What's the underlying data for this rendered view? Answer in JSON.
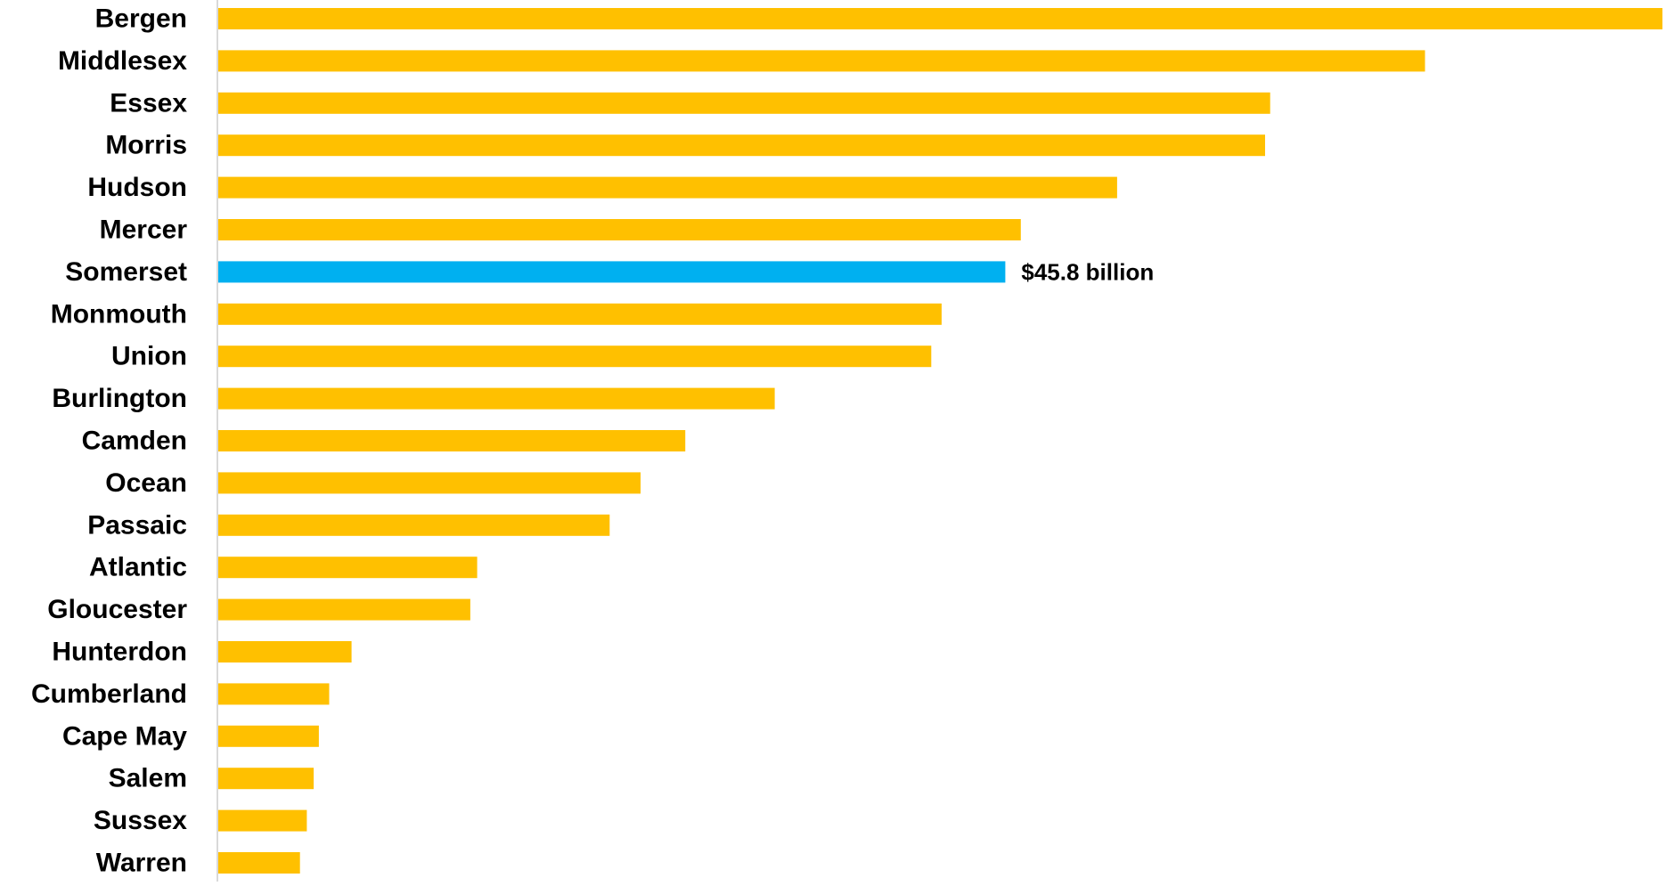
{
  "chart_data": {
    "type": "bar",
    "orientation": "horizontal",
    "categories": [
      "Bergen",
      "Middlesex",
      "Essex",
      "Morris",
      "Hudson",
      "Mercer",
      "Somerset",
      "Monmouth",
      "Union",
      "Burlington",
      "Camden",
      "Ocean",
      "Passaic",
      "Atlantic",
      "Gloucester",
      "Hunterdon",
      "Cumberland",
      "Cape May",
      "Salem",
      "Sussex",
      "Warren"
    ],
    "values": [
      84.0,
      70.2,
      61.2,
      60.9,
      52.3,
      46.7,
      45.8,
      42.1,
      41.5,
      32.4,
      27.2,
      24.6,
      22.8,
      15.1,
      14.7,
      7.8,
      6.5,
      5.9,
      5.6,
      5.2,
      4.8
    ],
    "highlight_category": "Somerset",
    "annotations": [
      {
        "category": "Somerset",
        "text": "$45.8 billion"
      }
    ],
    "xlim": [
      0,
      84.0
    ],
    "grid": false,
    "title": "",
    "xlabel": "",
    "ylabel": ""
  },
  "colors": {
    "bar": "#FFC000",
    "highlight": "#00B0F0",
    "axis_line": "#D9D9D9",
    "text": "#000000"
  }
}
